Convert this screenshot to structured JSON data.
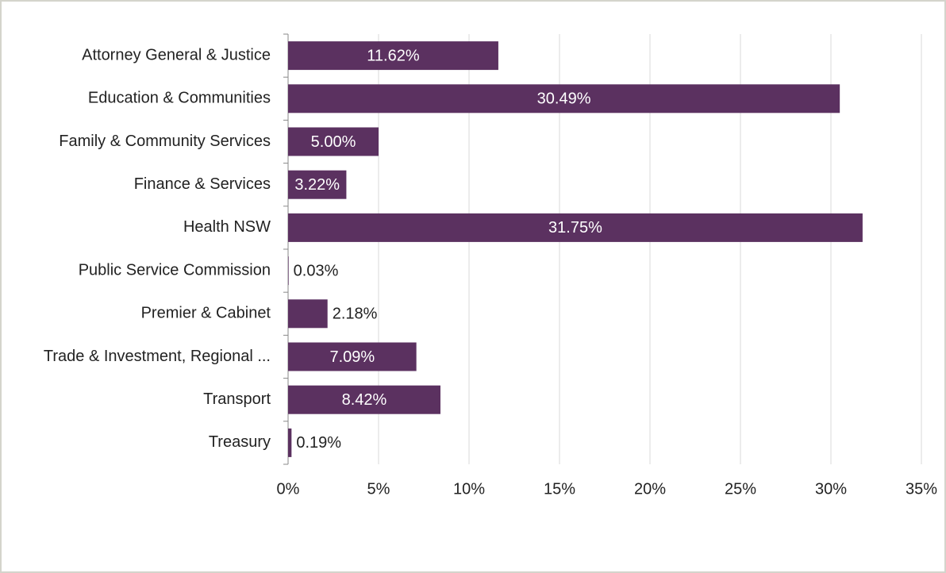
{
  "chart_data": {
    "type": "bar",
    "orientation": "horizontal",
    "categories": [
      "Attorney General & Justice",
      "Education & Communities",
      "Family & Community Services",
      "Finance & Services",
      "Health NSW",
      "Public Service Commission",
      "Premier & Cabinet",
      "Trade & Investment, Regional ...",
      "Transport",
      "Treasury"
    ],
    "values": [
      11.62,
      30.49,
      5.0,
      3.22,
      31.75,
      0.03,
      2.18,
      7.09,
      8.42,
      0.19
    ],
    "value_labels": [
      "11.62%",
      "30.49%",
      "5.00%",
      "3.22%",
      "31.75%",
      "0.03%",
      "2.18%",
      "7.09%",
      "8.42%",
      "0.19%"
    ],
    "color": "#5b3160",
    "xlim": [
      0,
      35
    ],
    "xticks": [
      {
        "value": 0,
        "label": "0%"
      },
      {
        "value": 5,
        "label": "5%"
      },
      {
        "value": 10,
        "label": "10%"
      },
      {
        "value": 15,
        "label": "15%"
      },
      {
        "value": 20,
        "label": "20%"
      },
      {
        "value": 25,
        "label": "25%"
      },
      {
        "value": 30,
        "label": "30%"
      },
      {
        "value": 35,
        "label": "35%"
      }
    ],
    "grid": true
  }
}
